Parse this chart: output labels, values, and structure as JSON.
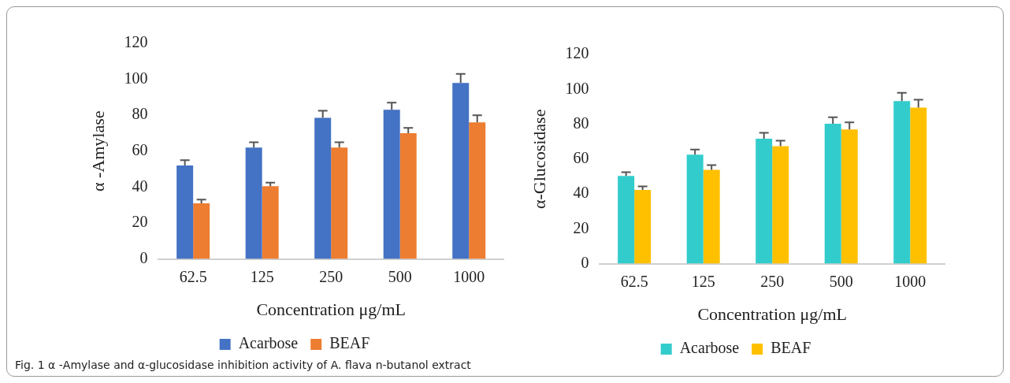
{
  "chart_data": [
    {
      "type": "bar",
      "xlabel": "Concentration μg/mL",
      "ylabel": "α -Amylase",
      "categories": [
        "62.5",
        "125",
        "250",
        "500",
        "1000"
      ],
      "ylim": [
        0,
        120
      ],
      "yticks": [
        0,
        20,
        40,
        60,
        80,
        100,
        120
      ],
      "legend": "bottom",
      "annotations": [
        "Fig. 1 α -Amylase and α-glucosidase inhibition activity of A. flava n-butanol extract"
      ],
      "series": [
        {
          "name": "Acarbose",
          "color": "#4472c4",
          "values": [
            52,
            62,
            78.5,
            83,
            98
          ],
          "errors": [
            [
              52,
              55
            ],
            [
              62,
              65
            ],
            [
              78.5,
              82.5
            ],
            [
              83,
              87
            ],
            [
              98,
              103
            ]
          ]
        },
        {
          "name": "BEAF",
          "color": "#ed7d31",
          "values": [
            31,
            40.5,
            62,
            70,
            76
          ],
          "errors": [
            [
              31,
              33
            ],
            [
              40.5,
              42.5
            ],
            [
              62,
              65
            ],
            [
              70,
              73
            ],
            [
              76,
              80
            ]
          ]
        }
      ]
    },
    {
      "type": "bar",
      "xlabel": "Concentration μg/mL",
      "ylabel": "α-Glucosidase",
      "categories": [
        "62.5",
        "125",
        "250",
        "500",
        "1000"
      ],
      "ylim": [
        0,
        120
      ],
      "yticks": [
        0,
        20,
        40,
        60,
        80,
        100,
        120
      ],
      "legend": "bottom",
      "series": [
        {
          "name": "Acarbose",
          "color": "#33cccc",
          "values": [
            50.3,
            62.5,
            71.7,
            80.2,
            93.2
          ],
          "errors": [
            [
              50.3,
              52.5
            ],
            [
              62.5,
              65.5
            ],
            [
              71.7,
              75
            ],
            [
              80.2,
              84
            ],
            [
              93.2,
              98
            ]
          ]
        },
        {
          "name": "BEAF",
          "color": "#ffc000",
          "values": [
            42.3,
            53.8,
            67.4,
            77,
            89.5
          ],
          "errors": [
            [
              42.3,
              44.3
            ],
            [
              53.8,
              56.5
            ],
            [
              67.4,
              70.5
            ],
            [
              77,
              81
            ],
            [
              89.5,
              94
            ]
          ]
        }
      ]
    }
  ]
}
